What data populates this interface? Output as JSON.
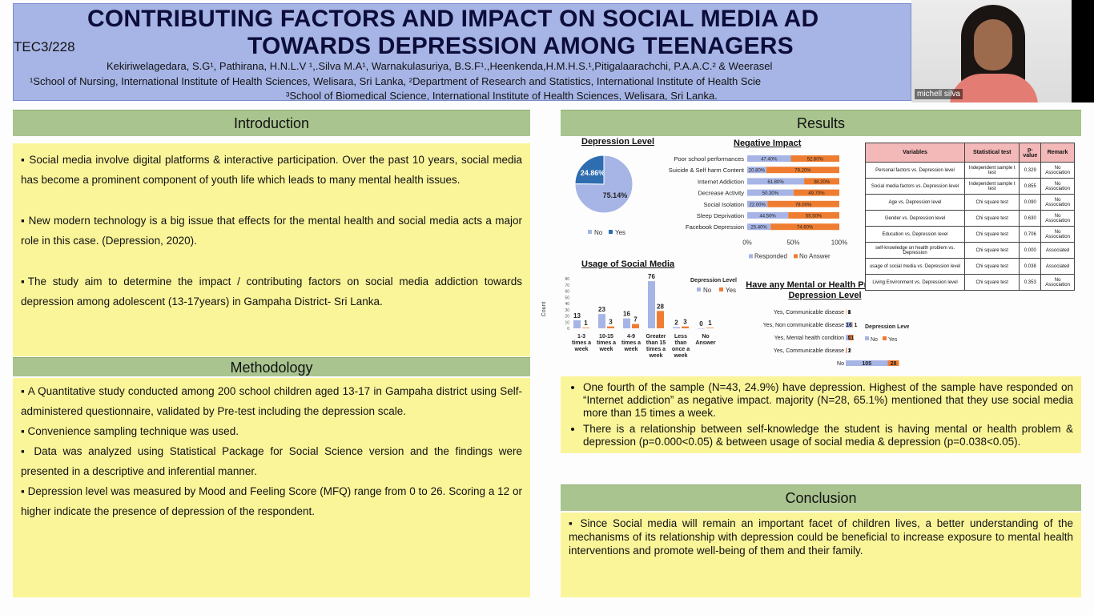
{
  "header": {
    "title_line1": "CONTRIBUTING FACTORS AND IMPACT ON SOCIAL MEDIA AD",
    "title_line2": "TOWARDS DEPRESSION AMONG TEENAGERS",
    "code": "TEC3/228",
    "authors": "Kekiriwelagedara, S.G¹, Pathirana, H.N.L.V ¹,.Silva M.A¹, Warnakulasuriya, B.S.F¹.,Heenkenda,H.M.H.S.¹,Pitigalaarachchi, P.A.A.C.² & Weerasel",
    "affiliation1": "¹School of Nursing, International Institute of Health Sciences, Welisara, Sri Lanka, ²Department of Research and Statistics, International Institute of Health Scie",
    "affiliation2": "³School of Biomedical Science, International Institute of Health Sciences, Welisara, Sri Lanka."
  },
  "webcam": {
    "name": "michell silva"
  },
  "introduction": {
    "heading": "Introduction",
    "p1": "▪ Social media involve digital platforms & interactive participation. Over the past 10 years, social media has become a prominent component of youth life which leads to many mental health issues.",
    "p2": "▪ New modern technology is a big issue that effects for the mental health and social media acts a major role in this case. (Depression, 2020).",
    "p3": "▪The study aim to determine the impact / contributing factors on social media addiction towards depression among adolescent (13-17years) in Gampaha District- Sri Lanka."
  },
  "methodology": {
    "heading": "Methodology",
    "items": [
      "▪ A Quantitative study conducted among 200 school children aged 13-17 in Gampaha district using Self-administered questionnaire, validated by Pre-test including the depression scale.",
      "▪ Convenience sampling technique was used.",
      "▪ Data was analyzed using Statistical Package for Social Science version and the findings were presented in a descriptive and inferential manner.",
      "▪ Depression level was measured by Mood and Feeling Score (MFQ) range from 0 to 26. Scoring a 12 or higher indicate the presence of depression of the respondent."
    ]
  },
  "results": {
    "heading": "Results",
    "bullets": [
      "One fourth of the sample (N=43, 24.9%) have depression. Highest of the sample have responded on “Internet addiction” as negative impact. majority (N=28, 65.1%) mentioned that they use social media more than 15 times a week.",
      "There is a relationship between self-knowledge the student is having mental or health problem & depression (p=0.000<0.05) & between usage of social media & depression (p=0.038<0.05)."
    ]
  },
  "conclusion": {
    "heading": "Conclusion",
    "text": "▪ Since Social media will remain an important facet of children lives, a better understanding of the mechanisms of its relationship with depression could be beneficial to increase exposure to mental health interventions and promote well-being of them and their family."
  },
  "colors": {
    "no": "#a7b5e6",
    "yes_pie": "#2e6db0",
    "orange": "#ef7d31"
  },
  "chart_data": [
    {
      "type": "pie",
      "title": "Depression Level",
      "labels": [
        "No",
        "Yes"
      ],
      "values": [
        75.14,
        24.86
      ],
      "value_labels": [
        "75.14%",
        "24.86%"
      ],
      "legend": [
        "No",
        "Yes"
      ]
    },
    {
      "type": "bar",
      "title": "Negative Impact",
      "orientation": "horizontal",
      "stacked": true,
      "categories": [
        "Poor school performances",
        "Suicide & Self harm Content",
        "Internet Addiction",
        "Decrease Activity",
        "Social Isolation",
        "Sleep Deprivation",
        "Facebook Depression"
      ],
      "series": [
        {
          "name": "Responded",
          "values": [
            47.4,
            20.8,
            61.8,
            50.3,
            22.0,
            44.5,
            25.4
          ],
          "labels": [
            "47.40%",
            "20.80%",
            "61.80%",
            "50.30%",
            "22.00%",
            "44.50%",
            "25.40%"
          ]
        },
        {
          "name": "No Answer",
          "values": [
            52.6,
            79.2,
            38.2,
            49.7,
            78.0,
            55.5,
            74.6
          ],
          "labels": [
            "52.60%",
            "79.20%",
            "38.20%",
            "49.70%",
            "78.00%",
            "55.50%",
            "74.60%"
          ]
        }
      ],
      "ticks": [
        "0%",
        "50%",
        "100%"
      ],
      "xlim": [
        0,
        100
      ]
    },
    {
      "type": "bar",
      "title": "Usage of Social Media",
      "ylabel": "Count",
      "legend_title": "Depression Level",
      "categories": [
        "1-3 times a week",
        "10-15 times a week",
        "4-9 times a week",
        "Greater than 15 times a week",
        "Less than once a week",
        "No Answer"
      ],
      "series": [
        {
          "name": "No",
          "values": [
            13,
            23,
            16,
            76,
            2,
            0
          ]
        },
        {
          "name": "Yes",
          "values": [
            1,
            3,
            7,
            28,
            3,
            1
          ]
        }
      ],
      "yticks": [
        "0",
        "10",
        "20",
        "30",
        "40",
        "50",
        "60",
        "70",
        "80"
      ],
      "ylim": [
        0,
        80
      ]
    },
    {
      "type": "bar",
      "title": "Have any Mental or Health Problems * Depression Level",
      "orientation": "horizontal",
      "legend_title": "Depression Level",
      "categories": [
        "Yes, Communicable disease",
        "Yes, Non communicable disease",
        "Yes, Mental health condition",
        "Yes, Communicable disease",
        "No"
      ],
      "series": [
        {
          "name": "No",
          "values": [
            0,
            16,
            8,
            1,
            105
          ]
        },
        {
          "name": "Yes",
          "values": [
            1,
            1,
            11,
            2,
            28
          ]
        }
      ],
      "xlim": [
        0,
        140
      ]
    },
    {
      "type": "table",
      "headers": [
        "Variables",
        "Statistical test",
        "p-value",
        "Remark"
      ],
      "rows": [
        [
          "Personal factors vs. Depression level",
          "Independent sample t test",
          "0.329",
          "No Association"
        ],
        [
          "Social media factors vs. Depression level",
          "Independent sample t test",
          "0.855",
          "No Association"
        ],
        [
          "Age vs. Depression level",
          "Chi square test",
          "0.090",
          "No Association"
        ],
        [
          "Gender vs. Depression level",
          "Chi square test",
          "0.630",
          "No Association"
        ],
        [
          "Education vs. Depression level",
          "Chi square test",
          "0.706",
          "No Association"
        ],
        [
          "self-knowledge on health problem vs. Depression",
          "Chi square test",
          "0.000",
          "Associated"
        ],
        [
          "usage of social media vs. Depression level",
          "Chi square test",
          "0.038",
          "Associated"
        ],
        [
          "Living Environment vs. Depression level",
          "Chi square test",
          "0.353",
          "No Association"
        ]
      ]
    }
  ]
}
